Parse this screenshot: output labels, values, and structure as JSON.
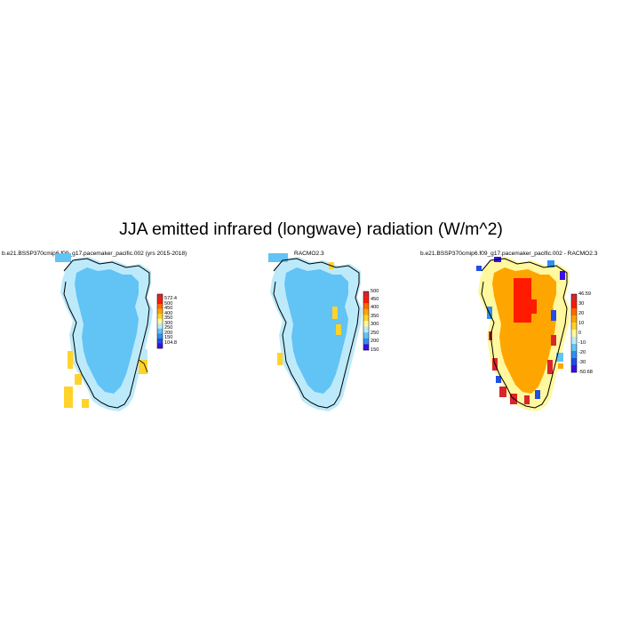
{
  "figure": {
    "title": "JJA emitted infrared (longwave) radiation (W/m^2)"
  },
  "panels": [
    {
      "title": "b.e21.BSSP370cmip6.f09_g17.pacemaker_pacific.002 (yrs 2015-2018)",
      "colorbar": {
        "labels": [
          "572.4",
          "500",
          "450",
          "400",
          "350",
          "300",
          "250",
          "200",
          "150",
          "104.8"
        ],
        "colors": [
          "#d8252a",
          "#ff1a00",
          "#ff6a00",
          "#ffa500",
          "#ffd32a",
          "#fff89e",
          "#bdeafa",
          "#62c3f5",
          "#2e90ef",
          "#1f4ee8",
          "#3b10e6"
        ]
      },
      "field_summary": "ice sheet interior ~300-350, margins 350-400"
    },
    {
      "title": "RACMO2.3",
      "colorbar": {
        "labels": [
          "500",
          "450",
          "400",
          "350",
          "300",
          "250",
          "200",
          "150"
        ],
        "colors": [
          "#d8252a",
          "#ff1a00",
          "#ff6a00",
          "#ffa500",
          "#ffd32a",
          "#fff89e",
          "#bdeafa",
          "#62c3f5",
          "#2e90ef",
          "#3b10e6"
        ]
      },
      "field_summary": "ice sheet interior ~300-350, margins 350-400"
    },
    {
      "title": "b.e21.BSSP370cmip6.f09_g17.pacemaker_pacific.002 - RACMO2.3",
      "colorbar": {
        "labels": [
          "46.59",
          "30",
          "20",
          "10",
          "0",
          "-10",
          "-20",
          "-30",
          "-50.68"
        ],
        "colors": [
          "#d8252a",
          "#ff1a00",
          "#ff6a00",
          "#ffa500",
          "#ffd32a",
          "#fff89e",
          "#bdeafa",
          "#62c3f5",
          "#2e90ef",
          "#1f4ee8",
          "#3b10e6"
        ]
      },
      "field_summary": "interior difference 10-20, central maximum 30+, mixed margins"
    }
  ],
  "colors": {
    "interior_blue": "#62c3f5",
    "margin_lightblue": "#bdeafa",
    "margin_yellow": "#ffd32a",
    "diff_orange": "#ffa500",
    "diff_red": "#ff1a00",
    "diff_yellow": "#fff89e"
  }
}
